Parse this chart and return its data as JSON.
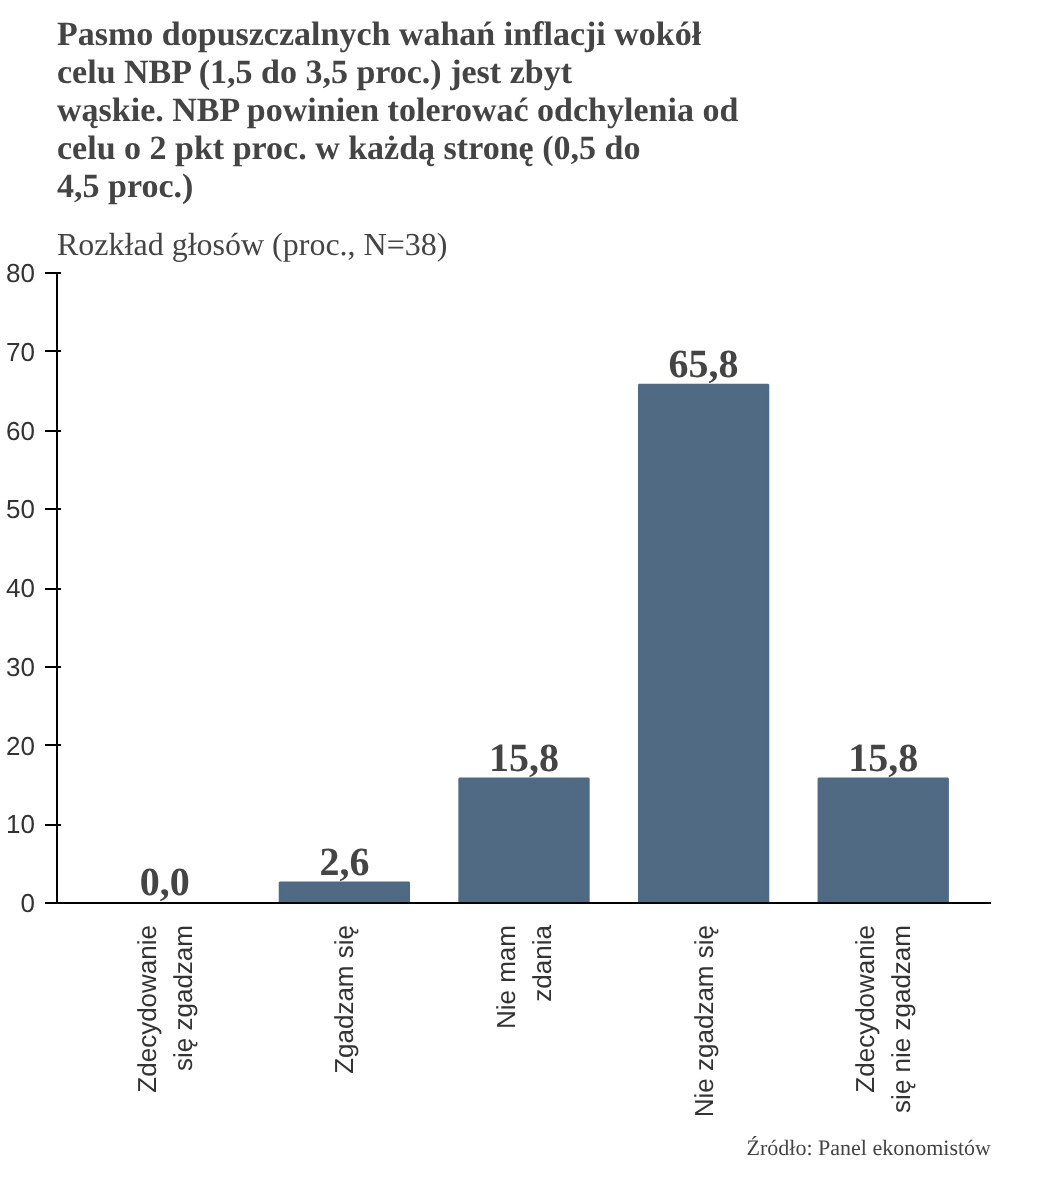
{
  "chart_data": {
    "type": "bar",
    "title": "Pasmo dopuszczalnych wahań inflacji wokół celu NBP (1,5 do 3,5 proc.) jest zbyt wąskie. NBP powinien tolerować odchylenia od celu o 2 pkt proc. w każdą stronę (0,5 do 4,5 proc.)",
    "subtitle": "Rozkład głosów (proc., N=38)",
    "categories": [
      "Zdecydowanie\nsię zgadzam",
      "Zgadzam się",
      "Nie mam\nzdania",
      "Nie zgadzam się",
      "Zdecydowanie\nsię nie zgadzam"
    ],
    "values": [
      0.0,
      2.6,
      15.8,
      65.8,
      15.8
    ],
    "color": "#4f6a82",
    "ylim": [
      0,
      80
    ],
    "yticks": [
      0,
      10,
      20,
      30,
      40,
      50,
      60,
      70,
      80
    ],
    "grid": false,
    "value_labels": [
      "0,0",
      "2,6",
      "15,8",
      "65,8",
      "15,8"
    ],
    "annotations": [
      "Źródło: Panel ekonomistów"
    ]
  }
}
